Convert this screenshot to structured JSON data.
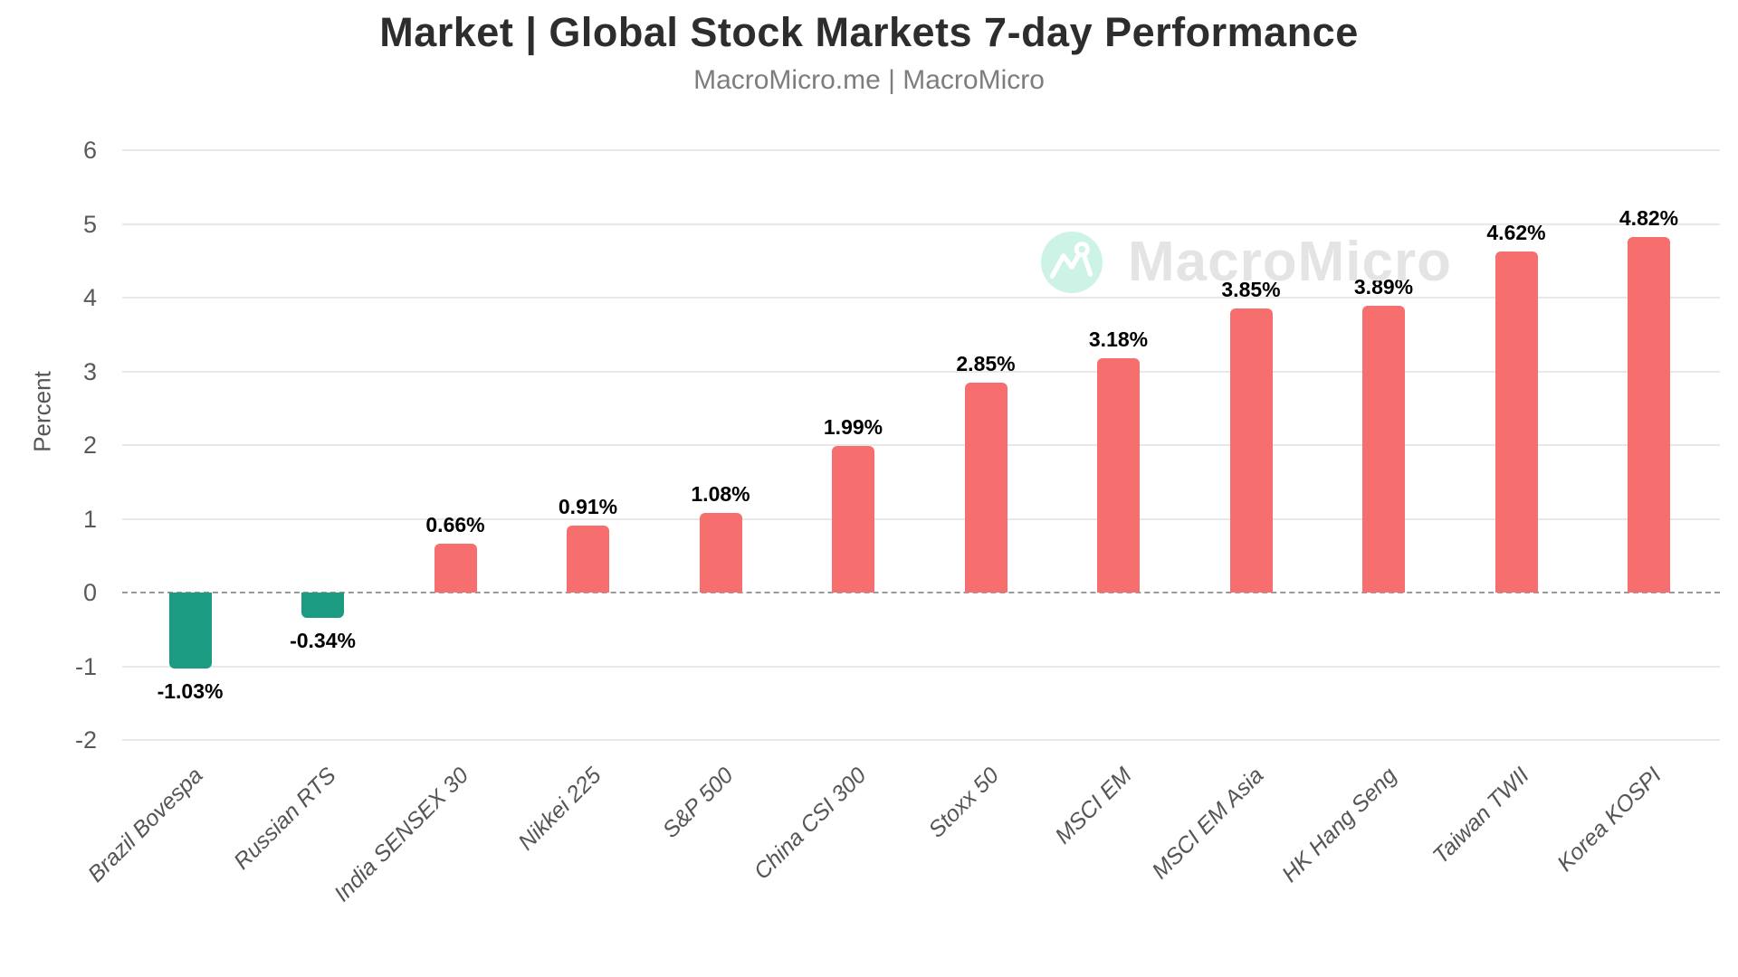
{
  "header": {
    "title": "Market | Global Stock Markets 7-day Performance",
    "subtitle": "MacroMicro.me | MacroMicro"
  },
  "watermark": {
    "brand": "MacroMicro",
    "icon": "macromicro-logo-icon",
    "icon_circle_color": "#cdf3e7",
    "text_color": "#e4e4e4"
  },
  "chart_data": {
    "type": "bar",
    "title": "Market | Global Stock Markets 7-day Performance",
    "subtitle": "MacroMicro.me | MacroMicro",
    "xlabel": "",
    "ylabel": "Percent",
    "ylim": [
      -2,
      6
    ],
    "yticks": [
      6,
      5,
      4,
      3,
      2,
      1,
      0,
      -1,
      -2
    ],
    "grid": true,
    "zero_line_style": "dashed",
    "legend": "none",
    "categories": [
      "Brazil Bovespa",
      "Russian RTS",
      "India SENSEX 30",
      "Nikkei 225",
      "S&P 500",
      "China CSI 300",
      "Stoxx 50",
      "MSCI EM",
      "MSCI EM Asia",
      "HK Hang Seng",
      "Taiwan TWII",
      "Korea KOSPI"
    ],
    "values": [
      -1.03,
      -0.34,
      0.66,
      0.91,
      1.08,
      1.99,
      2.85,
      3.18,
      3.85,
      3.89,
      4.62,
      4.82
    ],
    "point_labels": [
      "-1.03%",
      "-0.34%",
      "0.66%",
      "0.91%",
      "1.08%",
      "1.99%",
      "2.85%",
      "3.18%",
      "3.85%",
      "3.89%",
      "4.62%",
      "4.82%"
    ],
    "colors": {
      "positive_bar": "#f76e6e",
      "negative_bar": "#1c9b83",
      "gridline": "#e8e8e8",
      "zero_line": "#999999",
      "tick_label": "#595959",
      "category_label": "#555555",
      "point_label": "#000000"
    }
  }
}
